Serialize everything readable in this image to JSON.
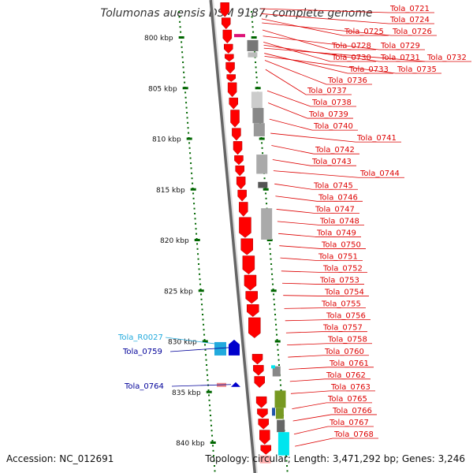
{
  "title": "Tolumonas auensis DSM 9187, complete genome",
  "accession": "Accession: NC_012691",
  "topology_summary": "Topology: circular; Length: 3,471,292 bp; Genes: 3,246",
  "colors": {
    "gene_forward": "#ff0000",
    "gene_reverse": "#0000cc",
    "rna_gene": "#22aadd",
    "label_forward": "#dd0000",
    "label_reverse": "#000099",
    "label_rna": "#22aadd",
    "ruler_tick": "#006600",
    "backbone": "#888888",
    "feature_gray": "#888888",
    "feature_olive": "#779922",
    "feature_cyan": "#00e5ee",
    "feature_magenta": "#dd1177"
  },
  "ruler_ticks": [
    {
      "kbp": 800,
      "label": "800 kbp"
    },
    {
      "kbp": 805,
      "label": "805 kbp"
    },
    {
      "kbp": 810,
      "label": "810 kbp"
    },
    {
      "kbp": 815,
      "label": "815 kbp"
    },
    {
      "kbp": 820,
      "label": "820 kbp"
    },
    {
      "kbp": 825,
      "label": "825 kbp"
    },
    {
      "kbp": 830,
      "label": "830 kbp"
    },
    {
      "kbp": 835,
      "label": "835 kbp"
    },
    {
      "kbp": 840,
      "label": "840 kbp"
    }
  ],
  "right_labels": [
    {
      "text": "Tola_0721",
      "kbp": 797.2
    },
    {
      "text": "Tola_0724",
      "kbp": 797.7
    },
    {
      "text": "Tola_0725",
      "kbp": 798.2
    },
    {
      "text": "Tola_0726",
      "kbp": 798.6
    },
    {
      "text": "Tola_0728",
      "kbp": 799.3
    },
    {
      "text": "Tola_0729",
      "kbp": 799.9
    },
    {
      "text": "Tola_0730",
      "kbp": 800.5
    },
    {
      "text": "Tola_0731",
      "kbp": 800.8
    },
    {
      "text": "Tola_0732",
      "kbp": 801.1
    },
    {
      "text": "Tola_0733",
      "kbp": 801.6
    },
    {
      "text": "Tola_0735",
      "kbp": 801.9
    },
    {
      "text": "Tola_0736",
      "kbp": 802.3
    },
    {
      "text": "Tola_0737",
      "kbp": 803.2
    },
    {
      "text": "Tola_0738",
      "kbp": 805.3
    },
    {
      "text": "Tola_0739",
      "kbp": 806.5
    },
    {
      "text": "Tola_0740",
      "kbp": 808.1
    },
    {
      "text": "Tola_0741",
      "kbp": 809.5
    },
    {
      "text": "Tola_0742",
      "kbp": 810.7
    },
    {
      "text": "Tola_0743",
      "kbp": 812.1
    },
    {
      "text": "Tola_0744",
      "kbp": 813.2
    },
    {
      "text": "Tola_0745",
      "kbp": 814.5
    },
    {
      "text": "Tola_0746",
      "kbp": 815.7
    },
    {
      "text": "Tola_0747",
      "kbp": 817.0
    },
    {
      "text": "Tola_0748",
      "kbp": 818.2
    },
    {
      "text": "Tola_0749",
      "kbp": 819.4
    },
    {
      "text": "Tola_0750",
      "kbp": 820.6
    },
    {
      "text": "Tola_0751",
      "kbp": 821.8
    },
    {
      "text": "Tola_0752",
      "kbp": 823.1
    },
    {
      "text": "Tola_0753",
      "kbp": 824.3
    },
    {
      "text": "Tola_0754",
      "kbp": 825.5
    },
    {
      "text": "Tola_0755",
      "kbp": 826.8
    },
    {
      "text": "Tola_0756",
      "kbp": 828.0
    },
    {
      "text": "Tola_0757",
      "kbp": 829.2
    },
    {
      "text": "Tola_0758",
      "kbp": 830.4
    },
    {
      "text": "Tola_0760",
      "kbp": 831.6
    },
    {
      "text": "Tola_0761",
      "kbp": 832.8
    },
    {
      "text": "Tola_0762",
      "kbp": 834.0
    },
    {
      "text": "Tola_0763",
      "kbp": 835.2
    },
    {
      "text": "Tola_0765",
      "kbp": 836.7
    },
    {
      "text": "Tola_0766",
      "kbp": 837.9
    },
    {
      "text": "Tola_0767",
      "kbp": 839.2
    },
    {
      "text": "Tola_0768",
      "kbp": 840.4
    }
  ],
  "left_labels": [
    {
      "text": "Tola_R0027",
      "kbp": 829.8,
      "kind": "rna"
    },
    {
      "text": "Tola_0759",
      "kbp": 830.8,
      "kind": "reverse"
    },
    {
      "text": "Tola_0764",
      "kbp": 834.4,
      "kind": "reverse"
    }
  ]
}
